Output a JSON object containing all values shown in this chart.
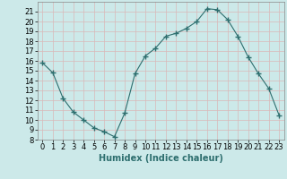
{
  "x": [
    0,
    1,
    2,
    3,
    4,
    5,
    6,
    7,
    8,
    9,
    10,
    11,
    12,
    13,
    14,
    15,
    16,
    17,
    18,
    19,
    20,
    21,
    22,
    23
  ],
  "y": [
    15.8,
    14.8,
    12.2,
    10.8,
    10.0,
    9.2,
    8.8,
    8.3,
    10.7,
    14.7,
    16.5,
    17.3,
    18.5,
    18.8,
    19.3,
    20.0,
    21.3,
    21.2,
    20.2,
    18.5,
    16.4,
    14.7,
    13.2,
    10.5
  ],
  "line_color": "#2d6e6e",
  "marker": "+",
  "marker_size": 4,
  "bg_color": "#cce9e9",
  "grid_color": "#d9b8b8",
  "xlabel": "Humidex (Indice chaleur)",
  "xlabel_fontsize": 7,
  "tick_fontsize": 6,
  "ylim": [
    8,
    22
  ],
  "xlim": [
    -0.5,
    23.5
  ],
  "yticks": [
    8,
    9,
    10,
    11,
    12,
    13,
    14,
    15,
    16,
    17,
    18,
    19,
    20,
    21
  ],
  "xticks": [
    0,
    1,
    2,
    3,
    4,
    5,
    6,
    7,
    8,
    9,
    10,
    11,
    12,
    13,
    14,
    15,
    16,
    17,
    18,
    19,
    20,
    21,
    22,
    23
  ]
}
